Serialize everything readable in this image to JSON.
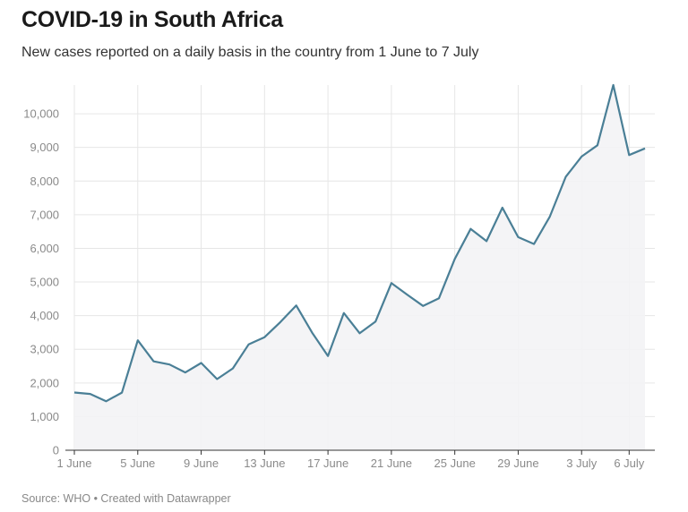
{
  "title": "COVID-19 in South Africa",
  "subtitle": "New cases reported on a daily basis in the country from 1 June to 7 July",
  "footer": "Source: WHO • Created with Datawrapper",
  "colors": {
    "line": "#4a7f96",
    "area": "#f3f3f5",
    "grid": "#e6e6e6",
    "axis": "#333333",
    "tick_text": "#8a8a8a"
  },
  "chart_data": {
    "type": "area",
    "x": [
      "1 June",
      "2 June",
      "3 June",
      "4 June",
      "5 June",
      "6 June",
      "7 June",
      "8 June",
      "9 June",
      "10 June",
      "11 June",
      "12 June",
      "13 June",
      "14 June",
      "15 June",
      "16 June",
      "17 June",
      "18 June",
      "19 June",
      "20 June",
      "21 June",
      "22 June",
      "23 June",
      "24 June",
      "25 June",
      "26 June",
      "27 June",
      "28 June",
      "29 June",
      "30 June",
      "1 July",
      "2 July",
      "3 July",
      "4 July",
      "5 July",
      "6 July",
      "7 July"
    ],
    "values": [
      1716,
      1674,
      1455,
      1713,
      3267,
      2642,
      2549,
      2312,
      2594,
      2115,
      2430,
      3147,
      3359,
      3809,
      4302,
      3494,
      2801,
      4078,
      3478,
      3825,
      4966,
      4621,
      4288,
      4518,
      5688,
      6579,
      6215,
      7210,
      6334,
      6130,
      6945,
      8124,
      8728,
      9063,
      10853,
      8773,
      8971
    ],
    "xticks": [
      "1 June",
      "5 June",
      "9 June",
      "13 June",
      "17 June",
      "21 June",
      "25 June",
      "29 June",
      "3 July",
      "6 July"
    ],
    "xtick_index": [
      0,
      4,
      8,
      12,
      16,
      20,
      24,
      28,
      32,
      35
    ],
    "yticks": [
      0,
      1000,
      2000,
      3000,
      4000,
      5000,
      6000,
      7000,
      8000,
      9000,
      10000
    ],
    "ytick_labels": [
      "0",
      "1,000",
      "2,000",
      "3,000",
      "4,000",
      "5,000",
      "6,000",
      "7,000",
      "8,000",
      "9,000",
      "10,000"
    ],
    "ylim": [
      0,
      10853
    ],
    "grid": true
  }
}
